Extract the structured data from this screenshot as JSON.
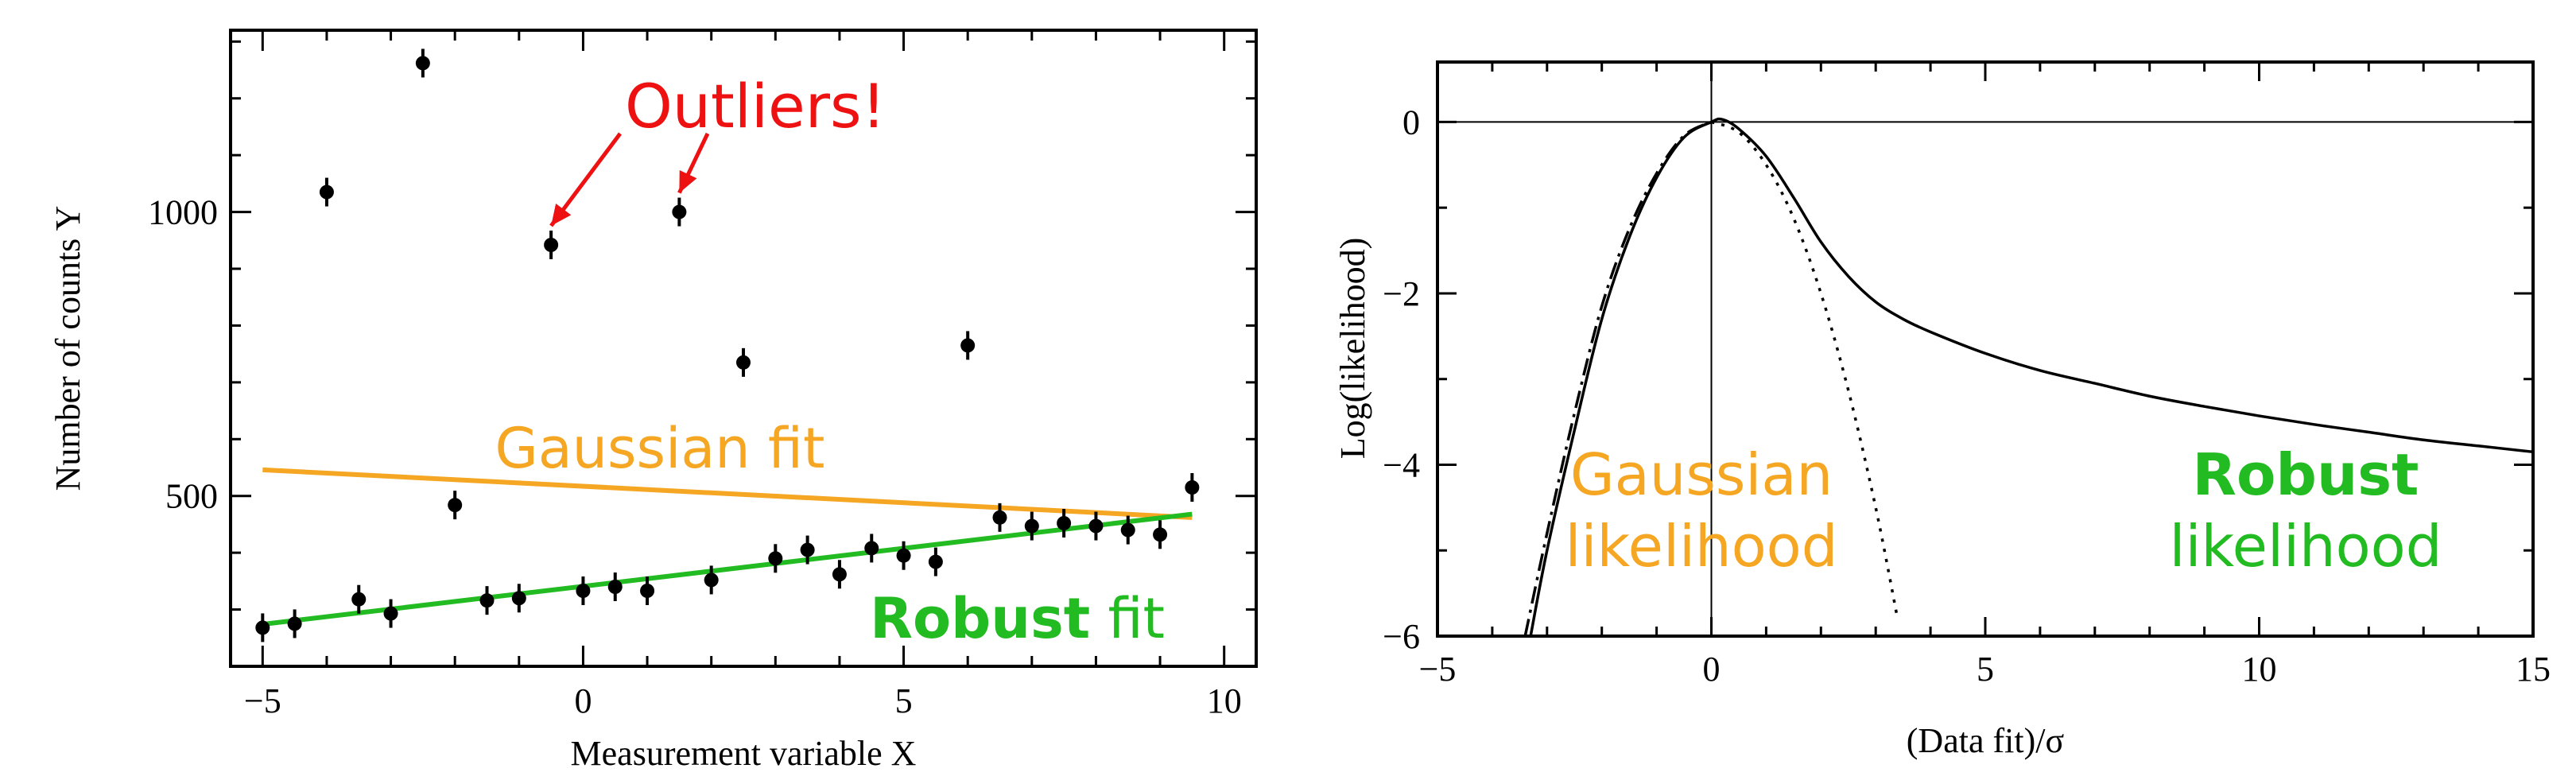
{
  "chart_data": [
    {
      "type": "scatter",
      "xlabel": "Measurement variable X",
      "ylabel": "Number of counts Y",
      "xlim": [
        -5.5,
        10.5
      ],
      "ylim": [
        200,
        1320
      ],
      "xticks": [
        -5,
        0,
        5,
        10
      ],
      "yticks": [
        500,
        1000
      ],
      "xtick_labels": [
        "−5",
        "0",
        "5",
        "10"
      ],
      "ytick_labels": [
        "500",
        "1000"
      ],
      "grid": false,
      "points": [
        {
          "x": -5.0,
          "y": 268
        },
        {
          "x": -4.5,
          "y": 275
        },
        {
          "x": -4.0,
          "y": 1035
        },
        {
          "x": -3.5,
          "y": 318
        },
        {
          "x": -3.0,
          "y": 293
        },
        {
          "x": -2.5,
          "y": 1262
        },
        {
          "x": -2.0,
          "y": 484
        },
        {
          "x": -1.5,
          "y": 316
        },
        {
          "x": -1.0,
          "y": 320
        },
        {
          "x": -0.5,
          "y": 942
        },
        {
          "x": 0.0,
          "y": 333
        },
        {
          "x": 0.5,
          "y": 340
        },
        {
          "x": 1.0,
          "y": 333
        },
        {
          "x": 1.5,
          "y": 1000
        },
        {
          "x": 2.0,
          "y": 352
        },
        {
          "x": 2.5,
          "y": 735
        },
        {
          "x": 3.0,
          "y": 390
        },
        {
          "x": 3.5,
          "y": 405
        },
        {
          "x": 4.0,
          "y": 362
        },
        {
          "x": 4.5,
          "y": 408
        },
        {
          "x": 5.0,
          "y": 395
        },
        {
          "x": 5.5,
          "y": 384
        },
        {
          "x": 6.0,
          "y": 765
        },
        {
          "x": 6.5,
          "y": 462
        },
        {
          "x": 7.0,
          "y": 447
        },
        {
          "x": 7.5,
          "y": 452
        },
        {
          "x": 8.0,
          "y": 447
        },
        {
          "x": 8.5,
          "y": 440
        },
        {
          "x": 9.0,
          "y": 432
        },
        {
          "x": 9.5,
          "y": 515
        }
      ],
      "series": [
        {
          "style": "line",
          "color": "#f5a623",
          "x": [
            -5,
            9.5
          ],
          "y": [
            546,
            462
          ]
        },
        {
          "style": "line",
          "color": "#22bb22",
          "x": [
            -5,
            9.5
          ],
          "y": [
            274,
            468
          ]
        }
      ],
      "annotations": {
        "outliers": {
          "text": "Outliers!",
          "color": "#ee1111"
        },
        "gaussian": {
          "text": "Gaussian fit",
          "color": "#f5a623"
        },
        "robust_bold": {
          "text": "Robust",
          "color": "#22bb22"
        },
        "robust_rest": {
          "text": " fit",
          "color": "#22bb22"
        }
      }
    },
    {
      "type": "line",
      "xlabel": "(Data fit)/σ",
      "ylabel": "Log(likelihood)",
      "xlim": [
        -5,
        15
      ],
      "ylim": [
        -6,
        0.7
      ],
      "xticks": [
        -5,
        0,
        5,
        10,
        15
      ],
      "yticks": [
        0,
        -2,
        -4,
        -6
      ],
      "xtick_labels": [
        "−5",
        "0",
        "5",
        "10",
        "15"
      ],
      "ytick_labels": [
        "0",
        "−2",
        "−4",
        "−6"
      ],
      "grid": false,
      "series": [
        {
          "style": "solid",
          "color": "#000000",
          "x": [
            -3.3,
            -3.0,
            -2.5,
            -2.0,
            -1.5,
            -1.0,
            -0.5,
            0.0,
            0.2,
            0.5,
            1.0,
            1.5,
            2.0,
            2.5,
            3.0,
            3.5,
            4.0,
            5.0,
            6.0,
            7.0,
            8.0,
            9.0,
            10.0,
            11.0,
            12.0,
            13.0,
            14.0,
            15.0
          ],
          "y": [
            -6.0,
            -5.0,
            -3.6,
            -2.3,
            -1.35,
            -0.65,
            -0.18,
            0.0,
            0.03,
            -0.08,
            -0.4,
            -0.88,
            -1.4,
            -1.8,
            -2.1,
            -2.3,
            -2.45,
            -2.7,
            -2.9,
            -3.05,
            -3.2,
            -3.32,
            -3.43,
            -3.53,
            -3.62,
            -3.71,
            -3.78,
            -3.85
          ]
        },
        {
          "style": "dashed",
          "color": "#000000",
          "x": [
            -3.4,
            -3.0,
            -2.5,
            -2.0,
            -1.5,
            -1.0,
            -0.5,
            0.0
          ],
          "y": [
            -6.0,
            -4.8,
            -3.4,
            -2.15,
            -1.25,
            -0.6,
            -0.16,
            0.0
          ]
        },
        {
          "style": "dotted",
          "color": "#000000",
          "x": [
            0.0,
            0.5,
            1.0,
            1.5,
            2.0,
            2.5,
            3.0,
            3.4
          ],
          "y": [
            0.0,
            -0.12,
            -0.5,
            -1.12,
            -2.0,
            -3.13,
            -4.5,
            -5.8
          ]
        }
      ],
      "annotations": {
        "gaussian_l1": {
          "text": "Gaussian",
          "color": "#f5a623"
        },
        "gaussian_l2": {
          "text": "likelihood",
          "color": "#f5a623"
        },
        "robust_l1": {
          "text": "Robust",
          "color": "#22bb22"
        },
        "robust_l2": {
          "text": "likelihood",
          "color": "#22bb22"
        }
      }
    }
  ]
}
